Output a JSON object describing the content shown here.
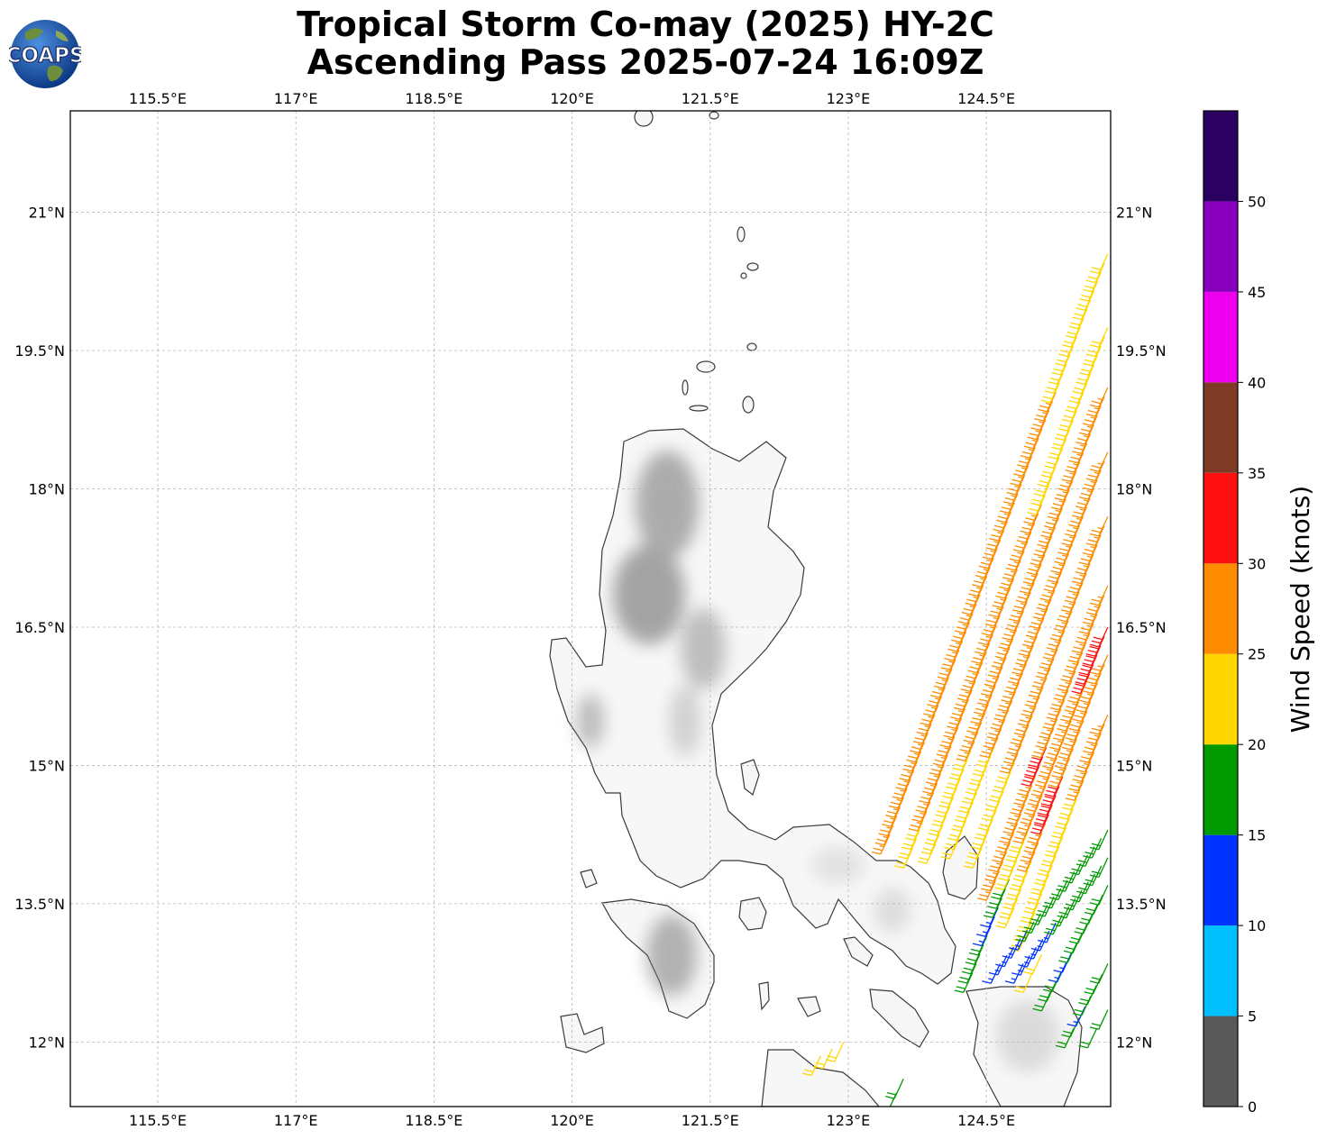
{
  "header": {
    "title_line1": "Tropical Storm Co-may (2025) HY-2C",
    "title_line2": "Ascending Pass 2025-07-24 16:09Z",
    "logo_text": "COAPS"
  },
  "map": {
    "lon_range": [
      114.55,
      125.85
    ],
    "lat_range": [
      11.3,
      22.1
    ],
    "lon_ticks": [
      115.5,
      117,
      118.5,
      120,
      121.5,
      123,
      124.5
    ],
    "lon_tick_labels": [
      "115.5°E",
      "117°E",
      "118.5°E",
      "120°E",
      "121.5°E",
      "123°E",
      "124.5°E"
    ],
    "lat_ticks": [
      21,
      19.5,
      18,
      16.5,
      15,
      13.5,
      12
    ],
    "lat_tick_labels": [
      "21°N",
      "19.5°N",
      "18°N",
      "16.5°N",
      "15°N",
      "13.5°N",
      "12°N"
    ],
    "gridlines": true,
    "land_shading": "grayscale terrain"
  },
  "colorbar": {
    "label": "Wind Speed (knots)",
    "bounds": [
      0,
      5,
      10,
      15,
      20,
      25,
      30,
      35,
      40,
      45,
      50,
      55
    ],
    "tick_labels": [
      "0",
      "5",
      "10",
      "15",
      "20",
      "25",
      "30",
      "35",
      "40",
      "45",
      "50"
    ],
    "colors": [
      "#595959",
      "#00bfff",
      "#0033ff",
      "#009900",
      "#ffd700",
      "#ff8c00",
      "#ff1010",
      "#7f3b26",
      "#ee00ee",
      "#8800bb",
      "#2a0060"
    ]
  },
  "wind_swath": {
    "direction_from_deg": 205,
    "tracks": [
      {
        "start": [
          123.45,
          14.25
        ],
        "end": [
          125.82,
          20.55
        ],
        "speeds": [
          25,
          25,
          25,
          25,
          25,
          25,
          25,
          25,
          25,
          25,
          25,
          25,
          25,
          25,
          25,
          25,
          25,
          25,
          25,
          25,
          25,
          25,
          25,
          25,
          25,
          25,
          25,
          25,
          25,
          25,
          25,
          25,
          25,
          25,
          25,
          25,
          25,
          25,
          25,
          25,
          25,
          25,
          25,
          25,
          25,
          25,
          25,
          25,
          25,
          22,
          22,
          22,
          22,
          22,
          22,
          22,
          22,
          22,
          22,
          22,
          22,
          22,
          22,
          22
        ]
      },
      {
        "start": [
          123.7,
          14.1
        ],
        "end": [
          125.82,
          19.75
        ],
        "speeds": [
          22,
          22,
          22,
          22,
          25,
          25,
          25,
          25,
          25,
          25,
          25,
          25,
          25,
          25,
          25,
          25,
          25,
          25,
          25,
          25,
          25,
          25,
          25,
          25,
          25,
          25,
          25,
          25,
          25,
          25,
          25,
          25,
          25,
          25,
          25,
          25,
          25,
          25,
          22,
          22,
          22,
          22,
          22,
          22,
          22,
          22,
          22,
          22,
          22,
          22,
          22,
          22,
          22,
          22,
          22,
          22,
          22
        ]
      },
      {
        "start": [
          123.95,
          14.15
        ],
        "end": [
          125.82,
          19.1
        ],
        "speeds": [
          22,
          22,
          22,
          22,
          22,
          22,
          22,
          22,
          22,
          22,
          22,
          25,
          25,
          25,
          25,
          25,
          25,
          25,
          25,
          25,
          25,
          25,
          25,
          25,
          25,
          25,
          25,
          25,
          25,
          25,
          25,
          25,
          25,
          25,
          25,
          25,
          25,
          25,
          25,
          25,
          25,
          25,
          25,
          25,
          25,
          25,
          25,
          25,
          25,
          25
        ]
      },
      {
        "start": [
          124.2,
          14.2
        ],
        "end": [
          125.82,
          18.4
        ],
        "speeds": [
          22,
          22,
          22,
          22,
          22,
          22,
          22,
          22,
          22,
          22,
          22,
          25,
          25,
          25,
          25,
          25,
          25,
          25,
          25,
          25,
          25,
          25,
          25,
          25,
          25,
          25,
          25,
          25,
          25,
          25,
          25,
          25,
          25,
          25,
          25,
          25,
          25,
          25,
          25,
          25,
          25,
          25,
          25
        ]
      },
      {
        "start": [
          124.45,
          14.1
        ],
        "end": [
          125.82,
          17.7
        ],
        "speeds": [
          22,
          22,
          22,
          22,
          22,
          22,
          22,
          22,
          22,
          22,
          25,
          25,
          25,
          25,
          25,
          25,
          25,
          25,
          25,
          25,
          25,
          25,
          25,
          25,
          25,
          25,
          25,
          25,
          25,
          25,
          25,
          25,
          25,
          25,
          25,
          25
        ]
      },
      {
        "start": [
          124.6,
          13.75
        ],
        "end": [
          125.82,
          16.95
        ],
        "speeds": [
          25,
          25,
          25,
          25,
          25,
          25,
          25,
          25,
          25,
          25,
          25,
          25,
          32,
          32,
          32,
          25,
          25,
          25,
          25,
          25,
          25,
          25,
          25,
          25,
          25,
          25,
          25,
          25,
          25,
          25,
          25,
          25
        ]
      },
      {
        "start": [
          124.8,
          13.45
        ],
        "end": [
          125.82,
          16.2
        ],
        "speeds": [
          22,
          22,
          22,
          22,
          22,
          22,
          25,
          25,
          25,
          25,
          32,
          32,
          32,
          32,
          32,
          25,
          25,
          25,
          25,
          25,
          25,
          25,
          25,
          25,
          25,
          25,
          25,
          25
        ]
      },
      {
        "start": [
          124.95,
          13.2
        ],
        "end": [
          125.82,
          15.55
        ],
        "speeds": [
          22,
          22,
          22,
          22,
          22,
          22,
          22,
          22,
          22,
          22,
          22,
          22,
          22,
          22,
          22,
          22,
          25,
          25,
          25,
          25,
          25,
          25,
          25,
          25
        ]
      },
      {
        "start": [
          124.35,
          12.75
        ],
        "end": [
          125.82,
          16.5
        ],
        "speeds": [
          18,
          18,
          18,
          18,
          18,
          13,
          13,
          13,
          18,
          18,
          18,
          22,
          22,
          22,
          22,
          22,
          25,
          25,
          25,
          25,
          25,
          25,
          25,
          25,
          25,
          25,
          25,
          25,
          25,
          25,
          25,
          25,
          32,
          32,
          32,
          32,
          32,
          32
        ]
      },
      {
        "start": [
          124.65,
          12.85
        ],
        "end": [
          125.82,
          14.3
        ],
        "speeds": [
          13,
          13,
          13,
          13,
          13,
          18,
          18,
          18,
          18,
          18,
          18,
          18,
          18,
          18,
          18,
          18,
          18
        ]
      },
      {
        "start": [
          124.9,
          12.85
        ],
        "end": [
          125.82,
          14.0
        ],
        "speeds": [
          13,
          13,
          13,
          13,
          13,
          13,
          18,
          18,
          18,
          18,
          18,
          18,
          18,
          18
        ]
      },
      {
        "start": [
          125.2,
          12.55
        ],
        "end": [
          125.82,
          13.7
        ],
        "speeds": [
          18,
          18,
          18,
          13,
          13,
          18,
          18,
          18,
          18,
          18,
          18,
          18
        ]
      },
      {
        "start": [
          125.45,
          12.15
        ],
        "end": [
          125.82,
          12.85
        ],
        "speeds": [
          18,
          18,
          13,
          18,
          18,
          18,
          18
        ]
      },
      {
        "start": [
          125.7,
          12.15
        ],
        "end": [
          125.82,
          12.35
        ],
        "speeds": [
          18,
          18
        ]
      },
      {
        "start": [
          125.0,
          12.75
        ],
        "end": [
          125.1,
          12.95
        ],
        "speeds": [
          22,
          22
        ]
      },
      {
        "start": [
          122.7,
          11.85
        ],
        "end": [
          122.95,
          12.0
        ],
        "speeds": [
          22,
          22,
          22
        ]
      },
      {
        "start": [
          123.45,
          11.3
        ],
        "end": [
          123.6,
          11.6
        ],
        "speeds": [
          18,
          18,
          18
        ]
      }
    ]
  }
}
